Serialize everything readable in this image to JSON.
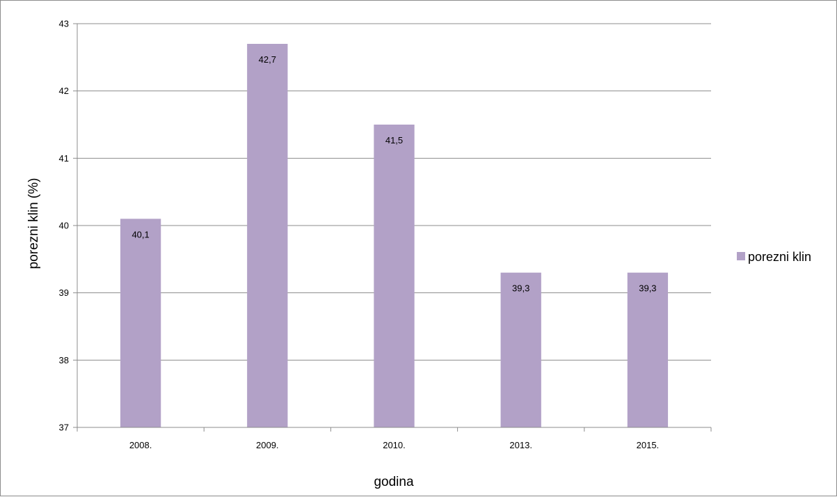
{
  "chart_data": {
    "type": "bar",
    "categories": [
      "2008.",
      "2009.",
      "2010.",
      "2013.",
      "2015."
    ],
    "series": [
      {
        "name": "porezni klin",
        "values": [
          40.1,
          42.7,
          41.5,
          39.3,
          39.3
        ],
        "data_labels": [
          "40,1",
          "42,7",
          "41,5",
          "39,3",
          "39,3"
        ],
        "color": "#b2a1c7"
      }
    ],
    "xlabel": "godina",
    "ylabel": "porezni klin (%)",
    "ylim": [
      37,
      43
    ],
    "yticks": [
      37,
      38,
      39,
      40,
      41,
      42,
      43
    ],
    "grid": true,
    "legend_position": "right",
    "gridline_color": "#8c8c8c",
    "axis_color": "#8c8c8c"
  }
}
